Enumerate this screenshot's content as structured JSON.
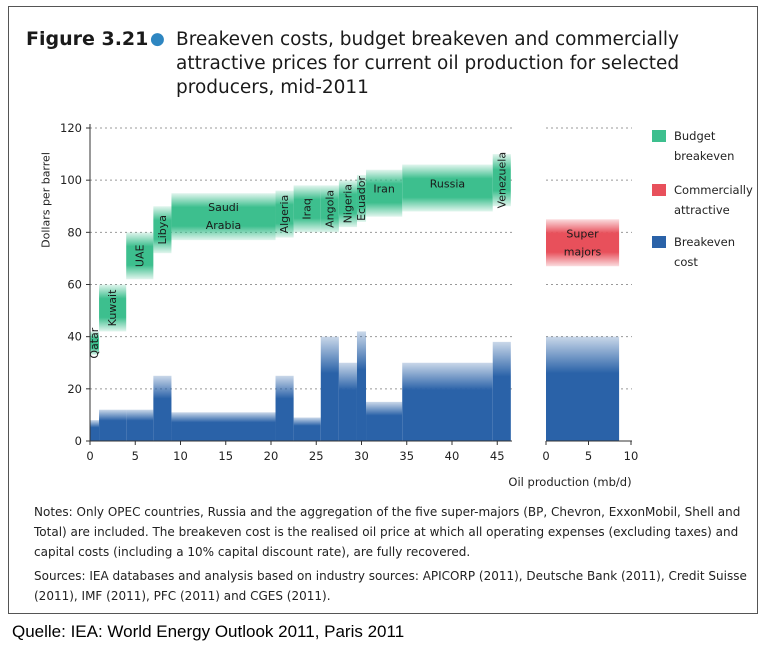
{
  "figure": {
    "number": "Figure 3.21",
    "title": "Breakeven costs, budget breakeven and commercially attractive prices for current oil production for selected producers, mid-2011"
  },
  "notes": "Notes: Only OPEC countries, Russia and the aggregation of the five super-majors (BP, Chevron, ExxonMobil, Shell and Total) are included. The breakeven cost is the realised oil price at which all operating expenses (excluding taxes) and capital costs (including a 10% capital discount rate), are fully recovered.",
  "sources": "Sources: IEA databases and analysis based on industry sources: APICORP (2011), Deutsche Bank (2011), Credit Suisse (2011), IMF (2011), PFC (2011) and CGES (2011).",
  "caption": "Quelle: IEA: World Energy Outlook 2011, Paris 2011",
  "colors": {
    "budget": "#3dbf8e",
    "commercial": "#e8505b",
    "breakeven": "#2a62a8"
  },
  "chart_data": {
    "type": "bar",
    "ylabel": "Dollars per barrel",
    "xlabel": "Oil production (mb/d)",
    "ylim": [
      0,
      120
    ],
    "yticks": [
      0,
      20,
      40,
      60,
      80,
      100,
      120
    ],
    "xticks_main": [
      0,
      5,
      10,
      15,
      20,
      25,
      30,
      35,
      40,
      45
    ],
    "xticks_side": [
      0,
      5,
      10
    ],
    "grid": "horizontal dotted",
    "legend": [
      {
        "key": "budget",
        "label": "Budget breakeven"
      },
      {
        "key": "commercial",
        "label": "Commercially attractive"
      },
      {
        "key": "breakeven",
        "label": "Breakeven cost"
      }
    ],
    "producers": [
      {
        "name": "Qatar",
        "x0": 0,
        "x1": 1,
        "breakeven": 8,
        "budget": [
          33,
          42
        ],
        "rotated": true
      },
      {
        "name": "Kuwait",
        "x0": 1,
        "x1": 4,
        "breakeven": 12,
        "budget": [
          42,
          60
        ],
        "rotated": true
      },
      {
        "name": "UAE",
        "x0": 4,
        "x1": 7,
        "breakeven": 12,
        "budget": [
          62,
          80
        ],
        "rotated": true
      },
      {
        "name": "Libya",
        "x0": 7,
        "x1": 9,
        "breakeven": 25,
        "budget": [
          72,
          90
        ],
        "rotated": true
      },
      {
        "name": "Saudi Arabia",
        "x0": 9,
        "x1": 20.5,
        "breakeven": 11,
        "budget": [
          77,
          95
        ],
        "rotated": false
      },
      {
        "name": "Algeria",
        "x0": 20.5,
        "x1": 22.5,
        "breakeven": 25,
        "budget": [
          78,
          96
        ],
        "rotated": true
      },
      {
        "name": "Iraq",
        "x0": 22.5,
        "x1": 25.5,
        "breakeven": 9,
        "budget": [
          80,
          98
        ],
        "rotated": true
      },
      {
        "name": "Angola",
        "x0": 25.5,
        "x1": 27.5,
        "breakeven": 40,
        "budget": [
          80,
          98
        ],
        "rotated": true
      },
      {
        "name": "Nigeria",
        "x0": 27.5,
        "x1": 29.5,
        "breakeven": 30,
        "budget": [
          82,
          100
        ],
        "rotated": true
      },
      {
        "name": "Ecuador",
        "x0": 29.5,
        "x1": 30.5,
        "breakeven": 42,
        "budget": [
          84,
          102
        ],
        "rotated": true
      },
      {
        "name": "Iran",
        "x0": 30.5,
        "x1": 34.5,
        "breakeven": 15,
        "budget": [
          86,
          104
        ],
        "rotated": false
      },
      {
        "name": "Russia",
        "x0": 34.5,
        "x1": 44.5,
        "breakeven": 30,
        "budget": [
          88,
          106
        ],
        "rotated": false
      },
      {
        "name": "Venezuela",
        "x0": 44.5,
        "x1": 46.5,
        "breakeven": 38,
        "budget": [
          90,
          110
        ],
        "rotated": true
      }
    ],
    "super_majors": {
      "name": "Super majors",
      "x0": 0,
      "x1": 8.6,
      "breakeven": 40,
      "commercial": [
        67,
        85
      ]
    }
  }
}
